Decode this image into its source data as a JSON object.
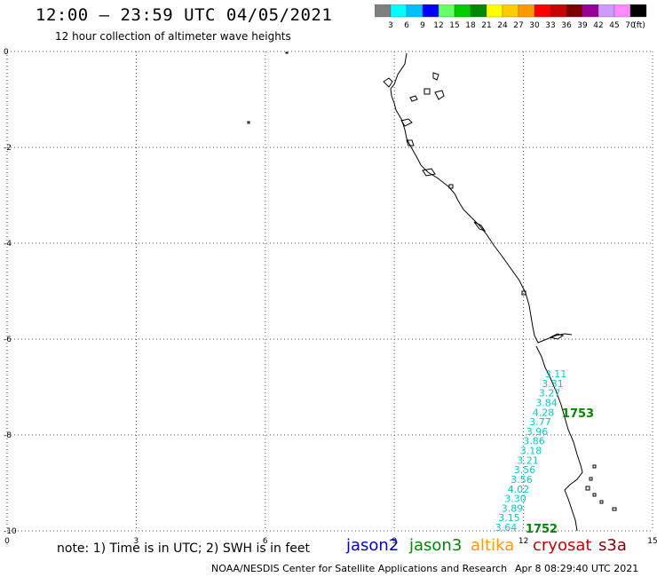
{
  "title": "12:00 – 23:59 UTC 04/05/2021",
  "subtitle": "12 hour collection of altimeter wave heights",
  "colorbar": {
    "labels": [
      "3",
      "6",
      "9",
      "12",
      "15",
      "18",
      "21",
      "24",
      "27",
      "30",
      "33",
      "36",
      "39",
      "42",
      "45",
      "70"
    ],
    "unit": "(ft)",
    "colors": [
      "#7f7f7f",
      "#00ffff",
      "#00bfff",
      "#0000ff",
      "#66ff66",
      "#00cc00",
      "#008800",
      "#ffff00",
      "#ffcc00",
      "#ff9900",
      "#ff0000",
      "#cc0000",
      "#800000",
      "#990099",
      "#cc99ff",
      "#ff88ff",
      "#000000"
    ]
  },
  "axes": {
    "x_ticks": [
      "0",
      "3",
      "6",
      "9",
      "12",
      "15"
    ],
    "y_ticks": [
      "0",
      "-2",
      "-4",
      "-6",
      "-8",
      "-10"
    ]
  },
  "wave_labels": [
    "3.11",
    "3.31",
    "3.27",
    "3.84",
    "4.28",
    "3.77",
    "3.96",
    "3.86",
    "3.18",
    "3.21",
    "3.56",
    "3.56",
    "4.02",
    "3.30",
    "3.89",
    "3.15",
    "3.64"
  ],
  "wave_color": "#00cccc",
  "time_labels": [
    "1753",
    "1752"
  ],
  "time_color": "#008800",
  "note": "note:  1) Time is in UTC;  2) SWH is in feet",
  "satellites": [
    {
      "name": "jason2",
      "color": "#0000cc"
    },
    {
      "name": "jason3",
      "color": "#008800"
    },
    {
      "name": "altika",
      "color": "#ff9900"
    },
    {
      "name": "cryosat",
      "color": "#cc0000"
    },
    {
      "name": "s3a",
      "color": "#880000"
    }
  ],
  "footer_left": "NOAA/NESDIS Center for Satellite Applications and Research",
  "footer_right": "Apr  8 08:29:40 UTC 2021"
}
